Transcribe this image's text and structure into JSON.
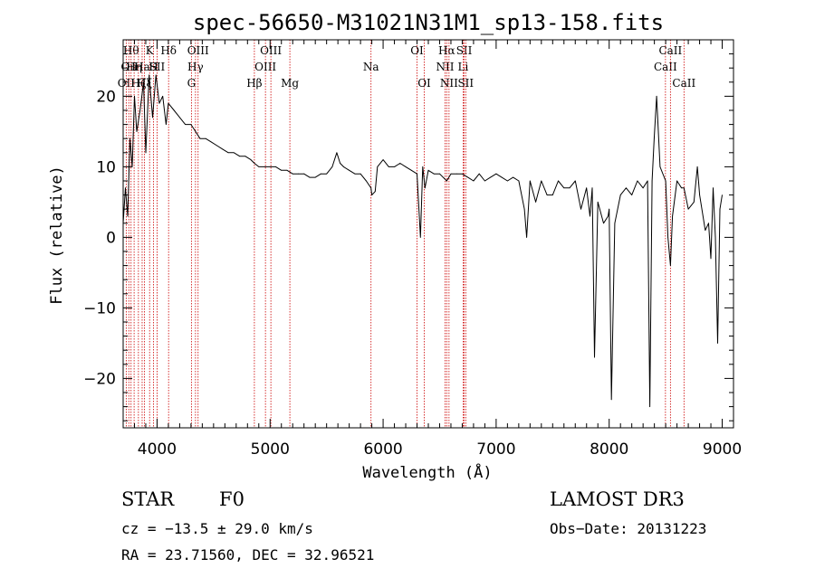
{
  "chart_data": {
    "type": "line",
    "title": "spec-56650-M31021N31M1_sp13-158.fits",
    "xlabel": "Wavelength (Å)",
    "ylabel": "Flux (relative)",
    "xlim": [
      3700,
      9100
    ],
    "ylim": [
      -27,
      28
    ],
    "xticks": [
      4000,
      5000,
      6000,
      7000,
      8000,
      9000
    ],
    "yticks": [
      -20,
      -10,
      0,
      10,
      20
    ],
    "xtick_labels": [
      "4000",
      "5000",
      "6000",
      "7000",
      "8000",
      "9000"
    ],
    "ytick_labels": [
      "−20",
      "−10",
      "0",
      "10",
      "20"
    ],
    "series": [
      {
        "name": "flux",
        "x": [
          3700,
          3720,
          3740,
          3760,
          3780,
          3800,
          3820,
          3850,
          3880,
          3900,
          3930,
          3960,
          3990,
          4020,
          4050,
          4080,
          4100,
          4150,
          4200,
          4250,
          4300,
          4340,
          4380,
          4430,
          4480,
          4530,
          4580,
          4630,
          4680,
          4730,
          4780,
          4830,
          4861,
          4900,
          4950,
          5000,
          5050,
          5100,
          5150,
          5200,
          5250,
          5300,
          5350,
          5400,
          5450,
          5500,
          5550,
          5590,
          5620,
          5650,
          5700,
          5750,
          5800,
          5850,
          5893,
          5900,
          5930,
          5950,
          6000,
          6050,
          6100,
          6150,
          6200,
          6250,
          6300,
          6330,
          6350,
          6370,
          6400,
          6450,
          6500,
          6563,
          6600,
          6650,
          6700,
          6750,
          6800,
          6850,
          6900,
          6950,
          7000,
          7050,
          7100,
          7150,
          7200,
          7250,
          7270,
          7300,
          7350,
          7400,
          7450,
          7500,
          7550,
          7600,
          7650,
          7700,
          7750,
          7800,
          7830,
          7850,
          7870,
          7900,
          7950,
          7990,
          8000,
          8020,
          8050,
          8100,
          8150,
          8200,
          8250,
          8300,
          8340,
          8360,
          8380,
          8398,
          8420,
          8450,
          8500,
          8520,
          8542,
          8560,
          8600,
          8640,
          8662,
          8700,
          8750,
          8780,
          8800,
          8850,
          8880,
          8900,
          8920,
          8940,
          8960,
          8980,
          9000
        ],
        "y": [
          2,
          7,
          3,
          14,
          10,
          20,
          15,
          18,
          22,
          12,
          23,
          17,
          23,
          19,
          20,
          16,
          19,
          18,
          17,
          16,
          16,
          15,
          14,
          14,
          13.5,
          13,
          12.5,
          12,
          12,
          11.5,
          11.5,
          11,
          10.5,
          10,
          10,
          10,
          10,
          9.5,
          9.5,
          9,
          9,
          9,
          8.5,
          8.5,
          9,
          9,
          10,
          12,
          10.5,
          10,
          9.5,
          9,
          9,
          8,
          7,
          6,
          6.5,
          10,
          11,
          10,
          10,
          10.5,
          10,
          9.5,
          9,
          0,
          10,
          7,
          9.5,
          9,
          9,
          8,
          9,
          9,
          9,
          8.5,
          8,
          9,
          8,
          8.5,
          9,
          8.5,
          8,
          8.5,
          8,
          4,
          0,
          8,
          5,
          8,
          6,
          6,
          8,
          7,
          7,
          8,
          4,
          7,
          3,
          7,
          -17,
          5,
          2,
          3,
          4,
          -23,
          2,
          6,
          7,
          6,
          8,
          7,
          8,
          -24,
          8,
          14,
          20,
          10,
          8,
          0,
          -4,
          3,
          8,
          7,
          7,
          4,
          5,
          10,
          6,
          1,
          2,
          -3,
          7,
          0,
          -15,
          4,
          6
        ]
      }
    ],
    "line_markers": [
      {
        "wavelength": 3727,
        "label": "OII",
        "row": 2
      },
      {
        "wavelength": 3750,
        "label": "Oii",
        "row": 1
      },
      {
        "wavelength": 3770,
        "label": "Hθ",
        "row": 0
      },
      {
        "wavelength": 3797,
        "label": "Hη",
        "row": 1
      },
      {
        "wavelength": 3835,
        "label": "Hζ",
        "row": 2
      },
      {
        "wavelength": 3868,
        "label": "Ha",
        "row": 1
      },
      {
        "wavelength": 3889,
        "label": "Hξ",
        "row": 2
      },
      {
        "wavelength": 3934,
        "label": "K",
        "row": 0
      },
      {
        "wavelength": 3969,
        "label": "H",
        "row": 1
      },
      {
        "wavelength": 4000,
        "label": "SII",
        "row": 1
      },
      {
        "wavelength": 4102,
        "label": "Hδ",
        "row": 0
      },
      {
        "wavelength": 4304,
        "label": "G",
        "row": 2
      },
      {
        "wavelength": 4340,
        "label": "Hγ",
        "row": 1
      },
      {
        "wavelength": 4363,
        "label": "OIII",
        "row": 0
      },
      {
        "wavelength": 4861,
        "label": "Hβ",
        "row": 2
      },
      {
        "wavelength": 4959,
        "label": "OIII",
        "row": 1
      },
      {
        "wavelength": 5007,
        "label": "OIII",
        "row": 0
      },
      {
        "wavelength": 5175,
        "label": "Mg",
        "row": 2
      },
      {
        "wavelength": 5893,
        "label": "Na",
        "row": 1
      },
      {
        "wavelength": 6300,
        "label": "OI",
        "row": 0
      },
      {
        "wavelength": 6364,
        "label": "OI",
        "row": 2
      },
      {
        "wavelength": 6548,
        "label": "NII",
        "row": 1
      },
      {
        "wavelength": 6563,
        "label": "Hα",
        "row": 0
      },
      {
        "wavelength": 6583,
        "label": "NII",
        "row": 2
      },
      {
        "wavelength": 6708,
        "label": "Li",
        "row": 1
      },
      {
        "wavelength": 6717,
        "label": "SII",
        "row": 0
      },
      {
        "wavelength": 6731,
        "label": "SII",
        "row": 2
      },
      {
        "wavelength": 8498,
        "label": "CaII",
        "row": 1
      },
      {
        "wavelength": 8542,
        "label": "CaII",
        "row": 0
      },
      {
        "wavelength": 8662,
        "label": "CaII",
        "row": 2
      }
    ],
    "grid": false,
    "legend": "none"
  },
  "info": {
    "class": "STAR",
    "subclass": "F0",
    "survey": "LAMOST DR3",
    "cz": "cz = −13.5 ± 29.0 km/s",
    "obs_date": "Obs−Date: 20131223",
    "coords": "RA =  23.71560, DEC =  32.96521"
  },
  "colors": {
    "axes": "#000000",
    "spectrum": "#000000",
    "marker": "#cc0000"
  }
}
